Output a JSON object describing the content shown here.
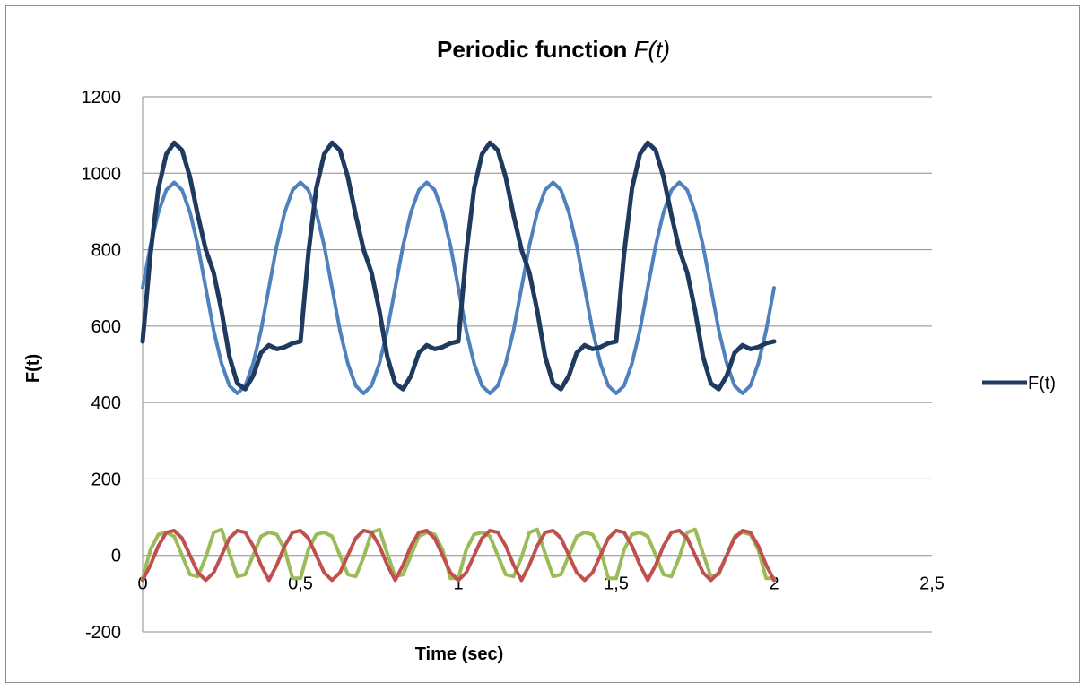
{
  "chart_data": {
    "type": "line",
    "title": "Periodic function ",
    "title_italic": "F(t)",
    "xlabel": "Time (sec)",
    "ylabel": "F(t)",
    "xlim": [
      0,
      2.5
    ],
    "ylim": [
      -200,
      1200
    ],
    "x_ticks": [
      {
        "value": 0,
        "label": "0"
      },
      {
        "value": 0.5,
        "label": "0,5"
      },
      {
        "value": 1,
        "label": "1"
      },
      {
        "value": 1.5,
        "label": "1,5"
      },
      {
        "value": 2,
        "label": "2"
      },
      {
        "value": 2.5,
        "label": "2,5"
      }
    ],
    "y_ticks": [
      {
        "value": -200,
        "label": "-200"
      },
      {
        "value": 0,
        "label": "0"
      },
      {
        "value": 200,
        "label": "200"
      },
      {
        "value": 400,
        "label": "400"
      },
      {
        "value": 600,
        "label": "600"
      },
      {
        "value": 800,
        "label": "800"
      },
      {
        "value": 1000,
        "label": "1000"
      },
      {
        "value": 1200,
        "label": "1200"
      }
    ],
    "grid": "horizontal",
    "legend_position": "right",
    "series": [
      {
        "name": "F(t)",
        "color": "#1f3a5f",
        "width": 5,
        "in_legend": true,
        "x": [
          0,
          0.025,
          0.05,
          0.075,
          0.1,
          0.125,
          0.15,
          0.175,
          0.2,
          0.225,
          0.25,
          0.275,
          0.3,
          0.325,
          0.35,
          0.375,
          0.4,
          0.425,
          0.45,
          0.475,
          0.5,
          0.525,
          0.55,
          0.575,
          0.6,
          0.625,
          0.65,
          0.675,
          0.7,
          0.725,
          0.75,
          0.775,
          0.8,
          0.825,
          0.85,
          0.875,
          0.9,
          0.925,
          0.95,
          0.975,
          1,
          1.025,
          1.05,
          1.075,
          1.1,
          1.125,
          1.15,
          1.175,
          1.2,
          1.225,
          1.25,
          1.275,
          1.3,
          1.325,
          1.35,
          1.375,
          1.4,
          1.425,
          1.45,
          1.475,
          1.5,
          1.525,
          1.55,
          1.575,
          1.6,
          1.625,
          1.65,
          1.675,
          1.7,
          1.725,
          1.75,
          1.775,
          1.8,
          1.825,
          1.85,
          1.875,
          1.9,
          1.925,
          1.95,
          1.975,
          2
        ],
        "values": [
          560,
          790,
          960,
          1050,
          1080,
          1060,
          990,
          890,
          800,
          740,
          640,
          520,
          450,
          435,
          470,
          530,
          550,
          540,
          545,
          555,
          560,
          790,
          960,
          1050,
          1080,
          1060,
          990,
          890,
          800,
          740,
          640,
          520,
          450,
          435,
          470,
          530,
          550,
          540,
          545,
          555,
          560,
          790,
          960,
          1050,
          1080,
          1060,
          990,
          890,
          800,
          740,
          640,
          520,
          450,
          435,
          470,
          530,
          550,
          540,
          545,
          555,
          560,
          790,
          960,
          1050,
          1080,
          1060,
          990,
          890,
          800,
          740,
          640,
          520,
          450,
          435,
          470,
          530,
          550,
          540,
          545,
          555,
          560
        ]
      },
      {
        "color": "#4f81bd",
        "width": 4,
        "in_legend": false,
        "x": [
          0,
          0.025,
          0.05,
          0.075,
          0.1,
          0.125,
          0.15,
          0.175,
          0.2,
          0.225,
          0.25,
          0.275,
          0.3,
          0.325,
          0.35,
          0.375,
          0.4,
          0.425,
          0.45,
          0.475,
          0.5,
          0.525,
          0.55,
          0.575,
          0.6,
          0.625,
          0.65,
          0.675,
          0.7,
          0.725,
          0.75,
          0.775,
          0.8,
          0.825,
          0.85,
          0.875,
          0.9,
          0.925,
          0.95,
          0.975,
          1,
          1.025,
          1.05,
          1.075,
          1.1,
          1.125,
          1.15,
          1.175,
          1.2,
          1.225,
          1.25,
          1.275,
          1.3,
          1.325,
          1.35,
          1.375,
          1.4,
          1.425,
          1.45,
          1.475,
          1.5,
          1.525,
          1.55,
          1.575,
          1.6,
          1.625,
          1.65,
          1.675,
          1.7,
          1.725,
          1.75,
          1.775,
          1.8,
          1.825,
          1.85,
          1.875,
          1.9,
          1.925,
          1.95,
          1.975,
          2
        ],
        "values": [
          700,
          811,
          898,
          956,
          976,
          956,
          898,
          811,
          700,
          589,
          502,
          444,
          424,
          444,
          502,
          589,
          700,
          811,
          898,
          956,
          976,
          956,
          898,
          811,
          700,
          589,
          502,
          444,
          424,
          444,
          502,
          589,
          700,
          811,
          898,
          956,
          976,
          956,
          898,
          811,
          700,
          589,
          502,
          444,
          424,
          444,
          502,
          589,
          700,
          811,
          898,
          956,
          976,
          956,
          898,
          811,
          700,
          589,
          502,
          444,
          424,
          444,
          502,
          589,
          700,
          811,
          898,
          956,
          976,
          956,
          898,
          811,
          700,
          589,
          502,
          444,
          424,
          444,
          502,
          589,
          700
        ]
      },
      {
        "color": "#c0504d",
        "width": 4,
        "in_legend": false,
        "x": [
          0,
          0.025,
          0.05,
          0.075,
          0.1,
          0.125,
          0.15,
          0.175,
          0.2,
          0.225,
          0.25,
          0.275,
          0.3,
          0.325,
          0.35,
          0.375,
          0.4,
          0.425,
          0.45,
          0.475,
          0.5,
          0.525,
          0.55,
          0.575,
          0.6,
          0.625,
          0.65,
          0.675,
          0.7,
          0.725,
          0.75,
          0.775,
          0.8,
          0.825,
          0.85,
          0.875,
          0.9,
          0.925,
          0.95,
          0.975,
          1,
          1.025,
          1.05,
          1.075,
          1.1,
          1.125,
          1.15,
          1.175,
          1.2,
          1.225,
          1.25,
          1.275,
          1.3,
          1.325,
          1.35,
          1.375,
          1.4,
          1.425,
          1.45,
          1.475,
          1.5,
          1.525,
          1.55,
          1.575,
          1.6,
          1.625,
          1.65,
          1.675,
          1.7,
          1.725,
          1.75,
          1.775,
          1.8,
          1.825,
          1.85,
          1.875,
          1.9,
          1.925,
          1.95,
          1.975,
          2
        ],
        "values": [
          -65,
          -25,
          25,
          60,
          65,
          45,
          0,
          -45,
          -65,
          -45,
          0,
          45,
          65,
          60,
          25,
          -25,
          -65,
          -25,
          25,
          60,
          65,
          45,
          0,
          -45,
          -65,
          -45,
          0,
          45,
          65,
          60,
          25,
          -25,
          -65,
          -25,
          25,
          60,
          65,
          45,
          0,
          -45,
          -65,
          -45,
          0,
          45,
          65,
          60,
          25,
          -25,
          -65,
          -25,
          25,
          60,
          65,
          45,
          0,
          -45,
          -65,
          -45,
          0,
          45,
          65,
          60,
          25,
          -25,
          -65,
          -25,
          25,
          60,
          65,
          45,
          0,
          -45,
          -65,
          -45,
          0,
          45,
          65,
          60,
          25,
          -25,
          -65
        ]
      },
      {
        "color": "#9bbb59",
        "width": 4,
        "in_legend": false,
        "x": [
          0,
          0.025,
          0.05,
          0.075,
          0.1,
          0.125,
          0.15,
          0.175,
          0.2,
          0.225,
          0.25,
          0.275,
          0.3,
          0.325,
          0.35,
          0.375,
          0.4,
          0.425,
          0.45,
          0.475,
          0.5,
          0.525,
          0.55,
          0.575,
          0.6,
          0.625,
          0.65,
          0.675,
          0.7,
          0.725,
          0.75,
          0.775,
          0.8,
          0.825,
          0.85,
          0.875,
          0.9,
          0.925,
          0.95,
          0.975,
          1,
          1.025,
          1.05,
          1.075,
          1.1,
          1.125,
          1.15,
          1.175,
          1.2,
          1.225,
          1.25,
          1.275,
          1.3,
          1.325,
          1.35,
          1.375,
          1.4,
          1.425,
          1.45,
          1.475,
          1.5,
          1.525,
          1.55,
          1.575,
          1.6,
          1.625,
          1.65,
          1.675,
          1.7,
          1.725,
          1.75,
          1.775,
          1.8,
          1.825,
          1.85,
          1.875,
          1.9,
          1.925,
          1.95,
          1.975,
          2
        ],
        "values": [
          -60,
          15,
          55,
          60,
          50,
          0,
          -50,
          -55,
          -5,
          60,
          68,
          5,
          -55,
          -50,
          0,
          50,
          60,
          55,
          15,
          -60,
          -60,
          15,
          55,
          60,
          50,
          0,
          -50,
          -55,
          -5,
          60,
          68,
          5,
          -55,
          -50,
          0,
          50,
          60,
          55,
          15,
          -60,
          -60,
          15,
          55,
          60,
          50,
          0,
          -50,
          -55,
          -5,
          60,
          68,
          5,
          -55,
          -50,
          0,
          50,
          60,
          55,
          15,
          -60,
          -60,
          15,
          55,
          60,
          50,
          0,
          -50,
          -55,
          -5,
          60,
          68,
          5,
          -55,
          -50,
          0,
          50,
          60,
          55,
          15,
          -60,
          -60
        ]
      }
    ]
  }
}
